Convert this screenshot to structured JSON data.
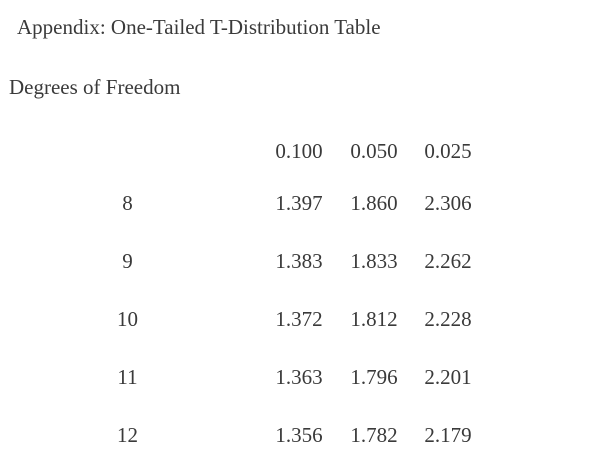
{
  "title": "Appendix: One-Tailed T-Distribution Table",
  "subtitle": "Degrees of Freedom",
  "table": {
    "header": [
      "",
      "0.100",
      "0.050",
      "0.025"
    ],
    "rows": [
      [
        "8",
        "1.397",
        "1.860",
        "2.306"
      ],
      [
        "9",
        "1.383",
        "1.833",
        "2.262"
      ],
      [
        "10",
        "1.372",
        "1.812",
        "2.228"
      ],
      [
        "11",
        "1.363",
        "1.796",
        "2.201"
      ],
      [
        "12",
        "1.356",
        "1.782",
        "2.179"
      ]
    ]
  }
}
